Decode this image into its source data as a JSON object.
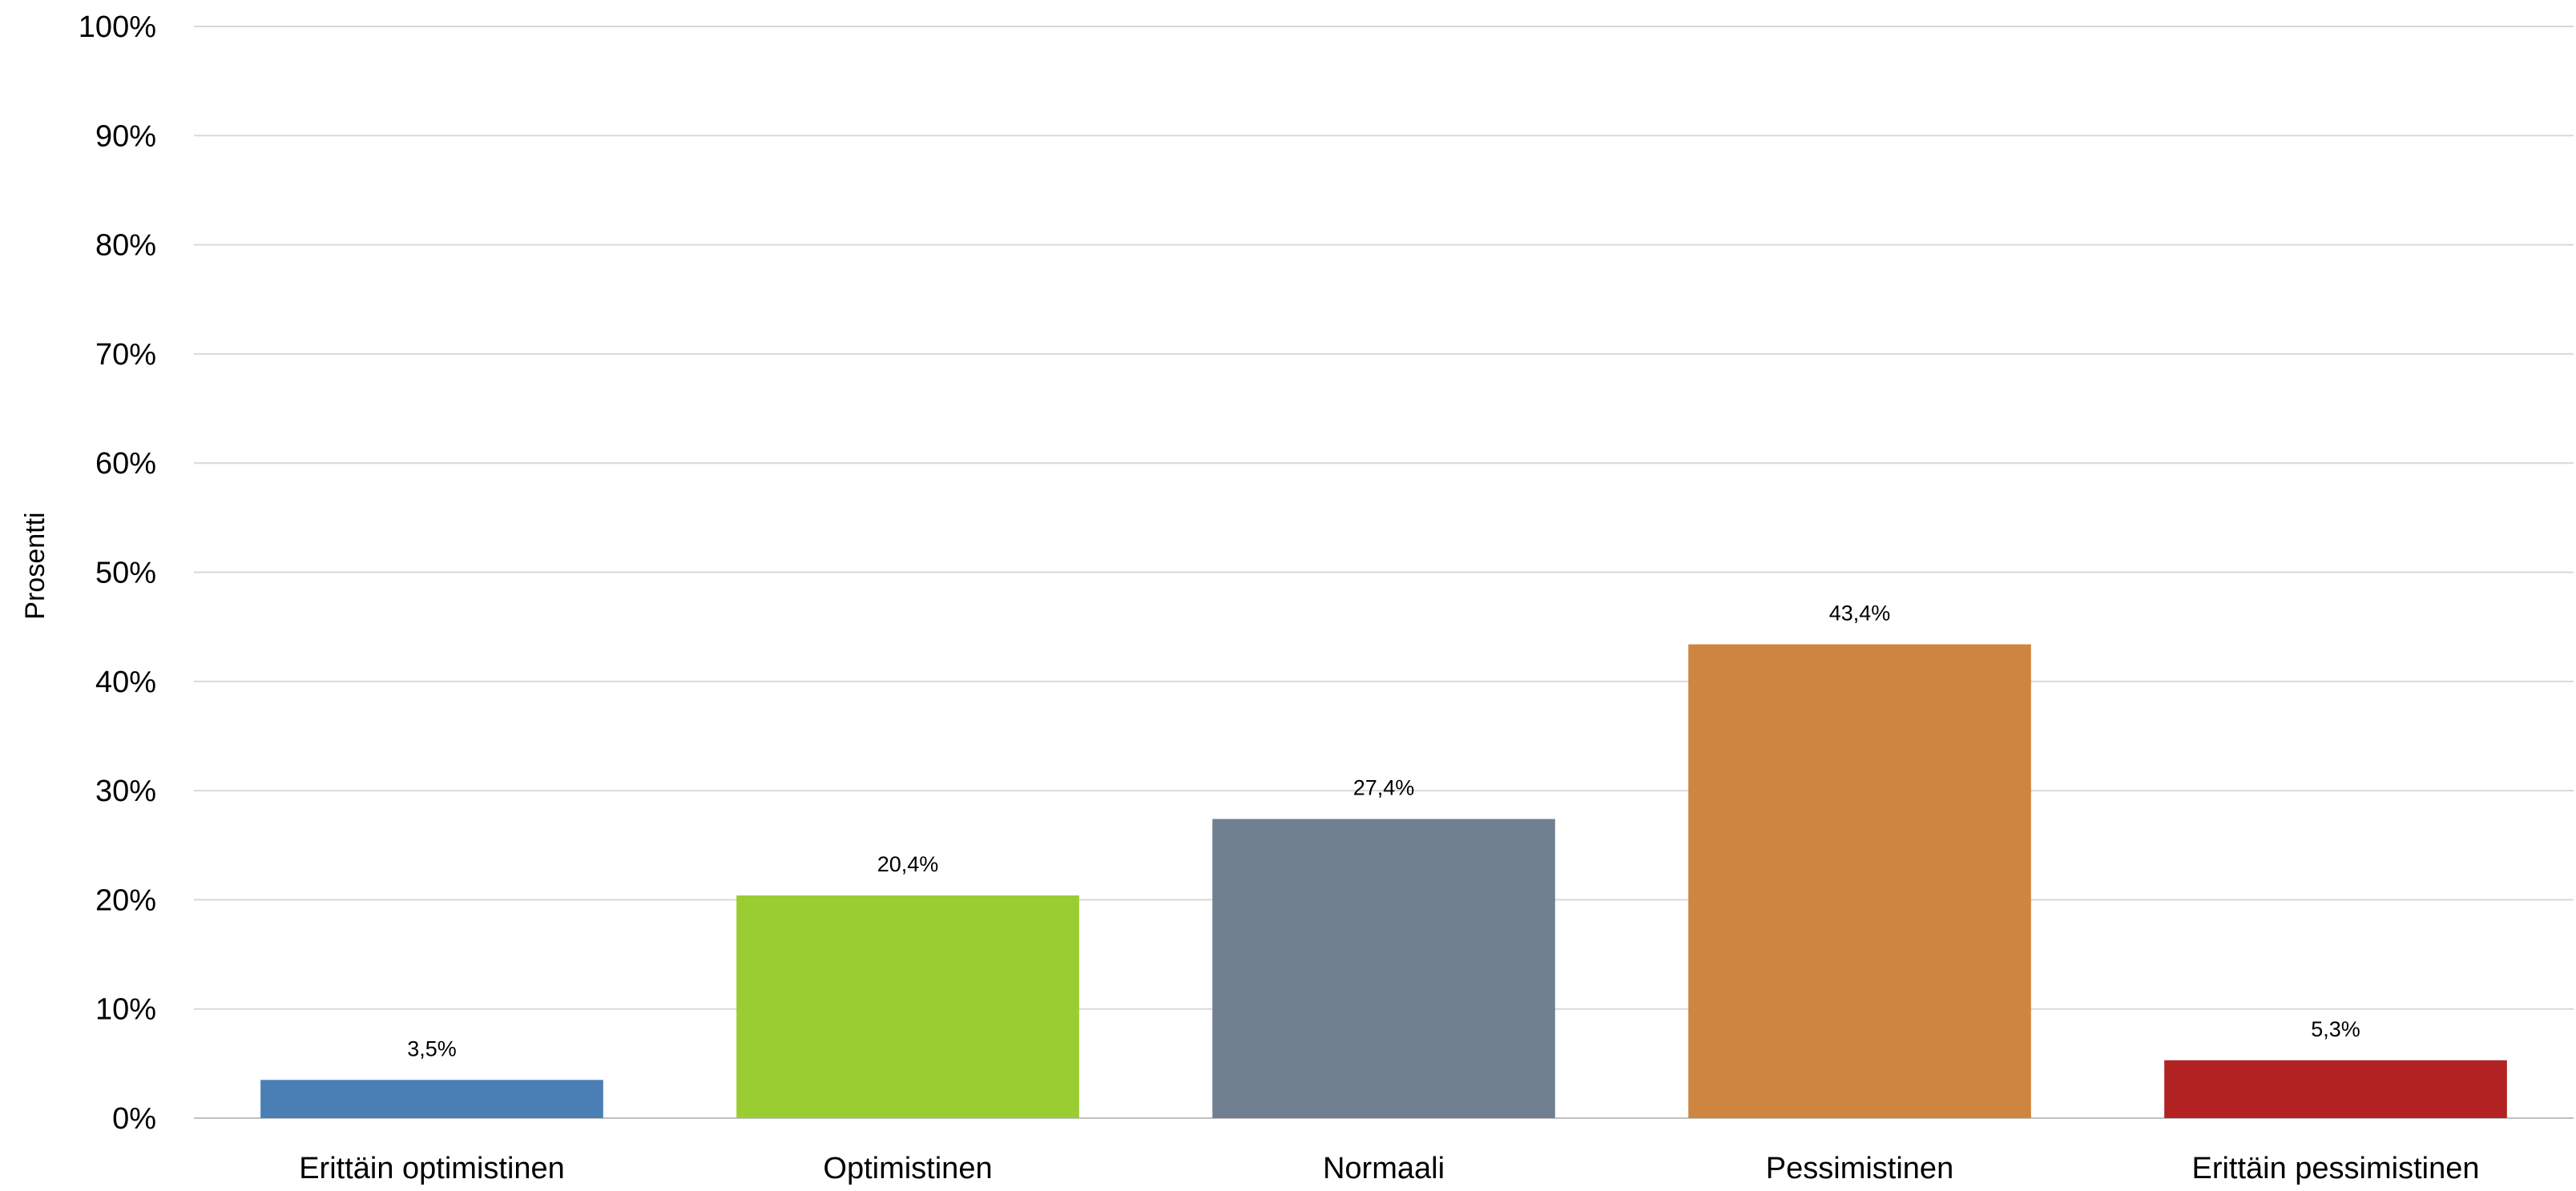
{
  "chart_data": {
    "type": "bar",
    "title": "",
    "xlabel": "",
    "ylabel": "Prosentti",
    "ylim": [
      0,
      100
    ],
    "y_ticks": [
      0,
      10,
      20,
      30,
      40,
      50,
      60,
      70,
      80,
      90,
      100
    ],
    "y_tick_labels": [
      "0%",
      "10%",
      "20%",
      "30%",
      "40%",
      "50%",
      "60%",
      "70%",
      "80%",
      "90%",
      "100%"
    ],
    "categories": [
      "Erittäin optimistinen",
      "Optimistinen",
      "Normaali",
      "Pessimistinen",
      "Erittäin pessimistinen"
    ],
    "values": [
      3.5,
      20.4,
      27.4,
      43.4,
      5.3
    ],
    "data_labels": [
      "3,5%",
      "20,4%",
      "27,4%",
      "43,4%",
      "5,3%"
    ],
    "colors": [
      "#4a7fb5",
      "#9acd32",
      "#708090",
      "#cd853f",
      "#b22222"
    ],
    "grid": true,
    "legend": "none"
  }
}
